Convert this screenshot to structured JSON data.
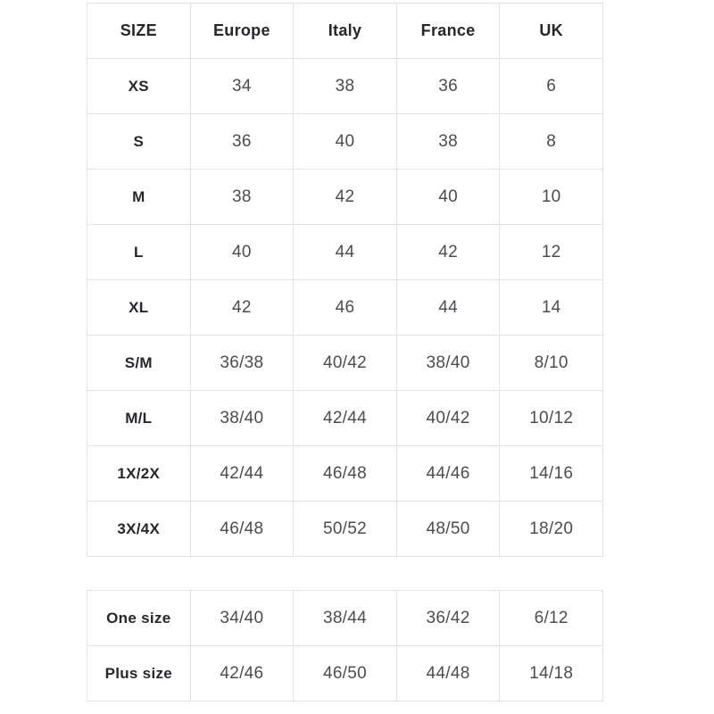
{
  "colors": {
    "background": "#ffffff",
    "border": "#e2e2e2",
    "header_text": "#26262e",
    "data_text": "#4b4c53"
  },
  "chart_data": [
    {
      "type": "table",
      "columns": [
        "SIZE",
        "Europe",
        "Italy",
        "France",
        "UK"
      ],
      "rows": [
        [
          "XS",
          "34",
          "38",
          "36",
          "6"
        ],
        [
          "S",
          "36",
          "40",
          "38",
          "8"
        ],
        [
          "M",
          "38",
          "42",
          "40",
          "10"
        ],
        [
          "L",
          "40",
          "44",
          "42",
          "12"
        ],
        [
          "XL",
          "42",
          "46",
          "44",
          "14"
        ],
        [
          "S/M",
          "36/38",
          "40/42",
          "38/40",
          "8/10"
        ],
        [
          "M/L",
          "38/40",
          "42/44",
          "40/42",
          "10/12"
        ],
        [
          "1X/2X",
          "42/44",
          "46/48",
          "44/46",
          "14/16"
        ],
        [
          "3X/4X",
          "46/48",
          "50/52",
          "48/50",
          "18/20"
        ]
      ]
    },
    {
      "type": "table",
      "columns": [],
      "rows": [
        [
          "One size",
          "34/40",
          "38/44",
          "36/42",
          "6/12"
        ],
        [
          "Plus size",
          "42/46",
          "46/50",
          "44/48",
          "14/18"
        ]
      ]
    }
  ]
}
